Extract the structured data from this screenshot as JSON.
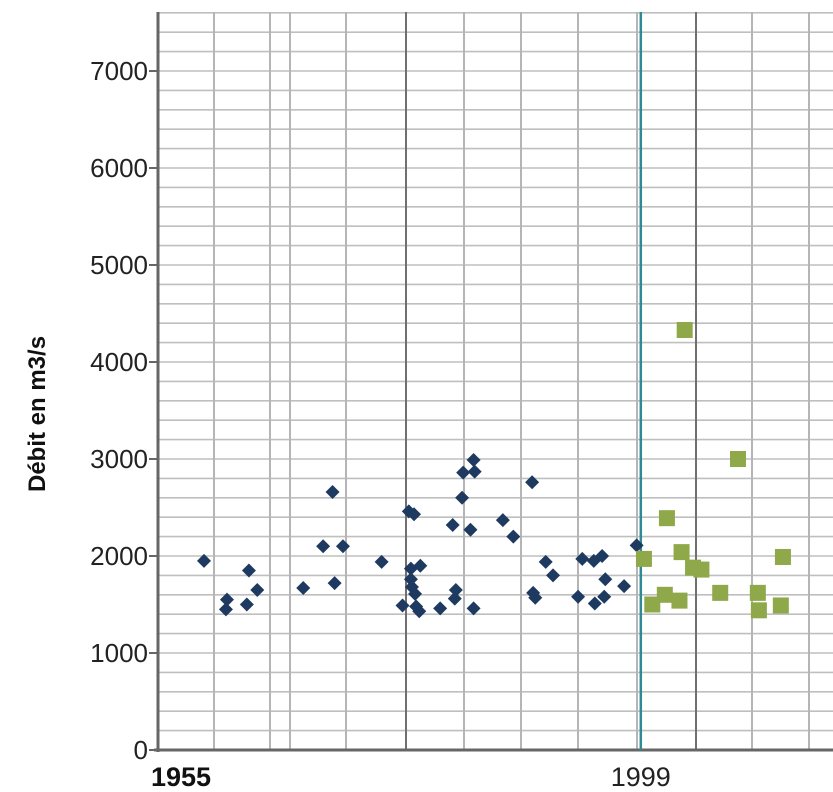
{
  "chart_data": {
    "type": "scatter",
    "title": "",
    "ylabel": "Débit en m3/s",
    "xlabel": "",
    "ylim": [
      0,
      7600
    ],
    "xlim": [
      1955,
      2020
    ],
    "yticks": [
      "0",
      "1000",
      "2000",
      "3000",
      "4000",
      "5000",
      "6000",
      "7000"
    ],
    "ytick_values": [
      0,
      1000,
      2000,
      3000,
      4000,
      5000,
      6000,
      7000
    ],
    "xtick_labels": [
      {
        "value": 1955,
        "text": "1955"
      },
      {
        "value": 1999,
        "text": "1999"
      }
    ],
    "vline_x": 1999,
    "grid": true,
    "series": [
      {
        "color": "#1f3a60",
        "marker": "diamond",
        "points": [
          [
            1957.2,
            1950
          ],
          [
            1959.3,
            1450
          ],
          [
            1959.4,
            1550
          ],
          [
            1961.3,
            1500
          ],
          [
            1961.5,
            1850
          ],
          [
            1962.3,
            1650
          ],
          [
            1966.7,
            1670
          ],
          [
            1968.6,
            2100
          ],
          [
            1969.5,
            2660
          ],
          [
            1969.7,
            1720
          ],
          [
            1970.5,
            2100
          ],
          [
            1974.2,
            1940
          ],
          [
            1976.2,
            1490
          ],
          [
            1976.8,
            2460
          ],
          [
            1977.0,
            1870
          ],
          [
            1977.0,
            1760
          ],
          [
            1977.1,
            1680
          ],
          [
            1977.3,
            2430
          ],
          [
            1977.4,
            1610
          ],
          [
            1977.5,
            1480
          ],
          [
            1977.8,
            1430
          ],
          [
            1977.9,
            1900
          ],
          [
            1979.8,
            1460
          ],
          [
            1981.0,
            2320
          ],
          [
            1981.2,
            1560
          ],
          [
            1981.3,
            1650
          ],
          [
            1981.9,
            2600
          ],
          [
            1982.0,
            2860
          ],
          [
            1982.7,
            2270
          ],
          [
            1983.0,
            2990
          ],
          [
            1983.1,
            2870
          ],
          [
            1983.0,
            1460
          ],
          [
            1985.8,
            2370
          ],
          [
            1986.8,
            2200
          ],
          [
            1988.6,
            2760
          ],
          [
            1988.7,
            1620
          ],
          [
            1988.9,
            1570
          ],
          [
            1989.9,
            1940
          ],
          [
            1990.6,
            1800
          ],
          [
            1993.0,
            1580
          ],
          [
            1993.4,
            1970
          ],
          [
            1994.5,
            1950
          ],
          [
            1994.6,
            1510
          ],
          [
            1995.3,
            2000
          ],
          [
            1995.5,
            1580
          ],
          [
            1995.6,
            1760
          ],
          [
            1997.4,
            1690
          ],
          [
            1998.6,
            2110
          ]
        ]
      },
      {
        "color": "#8ea84a",
        "marker": "square",
        "points": [
          [
            1999.3,
            1970
          ],
          [
            2000.1,
            1500
          ],
          [
            2001.3,
            1600
          ],
          [
            2001.5,
            2390
          ],
          [
            2002.7,
            1540
          ],
          [
            2002.9,
            2040
          ],
          [
            2003.2,
            4330
          ],
          [
            2004.0,
            1880
          ],
          [
            2004.8,
            1860
          ],
          [
            2006.6,
            1620
          ],
          [
            2008.3,
            3000
          ],
          [
            2010.2,
            1620
          ],
          [
            2010.3,
            1440
          ],
          [
            2012.4,
            1490
          ],
          [
            2012.6,
            1990
          ]
        ]
      }
    ]
  }
}
